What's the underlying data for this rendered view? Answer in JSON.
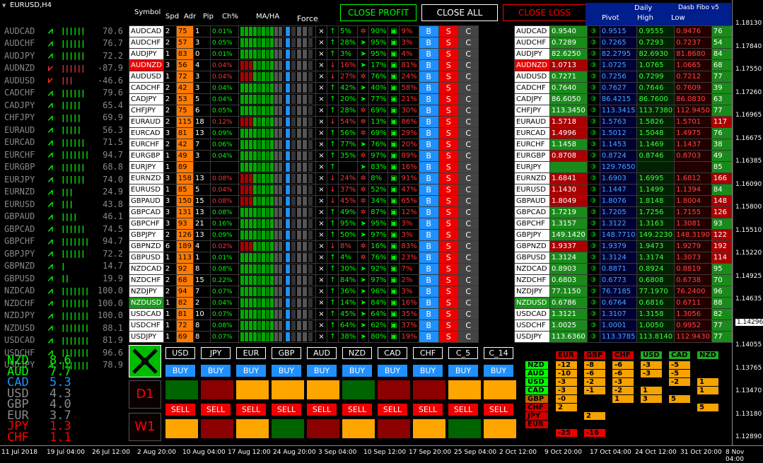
{
  "window": {
    "title": "EURUSD,H4"
  },
  "header": {
    "symbol": "Symbol",
    "spd": "Spd",
    "adr": "Adr",
    "pip": "Pip",
    "ch": "Ch%",
    "maha": "MA/HA",
    "force": "Force",
    "close_profit": "CLOSE PROFIT",
    "close_all": "CLOSE ALL",
    "close_loss": "CLOSE LOSS",
    "daily": "Daily",
    "dasb": "Dasb Fibo v5",
    "pivot": "Pivot",
    "high": "High",
    "low": "Low"
  },
  "strength": [
    [
      "AUDCAD",
      "up",
      6,
      "70.6"
    ],
    [
      "AUDCHF",
      "up",
      6,
      "76.7"
    ],
    [
      "AUDJPY",
      "up",
      6,
      "72.2"
    ],
    [
      "AUDNZD",
      "dn",
      6,
      "-87.9"
    ],
    [
      "AUDUSD",
      "dn",
      3,
      "-46.6"
    ],
    [
      "CADCHF",
      "up",
      6,
      "79.6"
    ],
    [
      "CADJPY",
      "up",
      5,
      "65.4"
    ],
    [
      "CHFJPY",
      "up",
      5,
      "69.9"
    ],
    [
      "EURAUD",
      "up",
      5,
      "56.3"
    ],
    [
      "EURCAD",
      "up",
      6,
      "71.5"
    ],
    [
      "EURCHF",
      "up",
      8,
      "94.7"
    ],
    [
      "EURGBP",
      "up",
      6,
      "68.8"
    ],
    [
      "EURJPY",
      "up",
      6,
      "74.0"
    ],
    [
      "EURNZD",
      "up",
      3,
      "24.9"
    ],
    [
      "EURUSD",
      "up",
      3,
      "43.8"
    ],
    [
      "GBPAUD",
      "up",
      4,
      "46.1"
    ],
    [
      "GBPCAD",
      "up",
      6,
      "74.5"
    ],
    [
      "GBPCHF",
      "up",
      8,
      "94.7"
    ],
    [
      "GBPJPY",
      "up",
      6,
      "72.2"
    ],
    [
      "GBPNZD",
      "up",
      1,
      "14.7"
    ],
    [
      "GBPUSD",
      "up",
      2,
      "19.9"
    ],
    [
      "NZDCAD",
      "up",
      8,
      "100.0"
    ],
    [
      "NZDCHF",
      "up",
      8,
      "100.0"
    ],
    [
      "NZDJPY",
      "up",
      8,
      "100.0"
    ],
    [
      "NZDUSD",
      "up",
      7,
      "88.1"
    ],
    [
      "USDCAD",
      "up",
      7,
      "81.9"
    ],
    [
      "USDCHF",
      "up",
      8,
      "96.6"
    ],
    [
      "USDJPY",
      "up",
      7,
      "78.9"
    ]
  ],
  "currencies": [
    [
      "NZD",
      "8.6",
      "#0f0"
    ],
    [
      "AUD",
      "7.7",
      "#0f0"
    ],
    [
      "CAD",
      "5.3",
      "#1e90ff"
    ],
    [
      "USD",
      "4.3",
      "#888"
    ],
    [
      "GBP",
      "4.0",
      "#888"
    ],
    [
      "EUR",
      "3.7",
      "#888"
    ],
    [
      "JPY",
      "1.3",
      "#f00"
    ],
    [
      "CHF",
      "1.1",
      "#f00"
    ]
  ],
  "rows": [
    [
      "AUDCAD",
      "2",
      "75",
      "1",
      "0.01%",
      "up",
      "5%",
      "dn",
      "90%",
      "9%",
      "0.9540",
      "0.9515",
      "0.9555",
      "0.9476",
      "76",
      "w"
    ],
    [
      "AUDCHF",
      "2",
      "57",
      "3",
      "0.05%",
      "up",
      "28%",
      "up",
      "95%",
      "3%",
      "0.7289",
      "0.7265",
      "0.7293",
      "0.7237",
      "54",
      "w"
    ],
    [
      "AUDJPY",
      "1",
      "83",
      "0",
      "0.01%",
      "up",
      "3%",
      "up",
      "95%",
      "4%",
      "82.6250",
      "82.2795",
      "82.6930",
      "81.8680",
      "84",
      "w"
    ],
    [
      "AUDNZD",
      "3",
      "56",
      "4",
      "0.04%",
      "dn",
      "16%",
      "up",
      "17%",
      "81%",
      "1.0713",
      "1.0725",
      "1.0765",
      "1.0665",
      "68",
      "r"
    ],
    [
      "AUDUSD",
      "1",
      "72",
      "3",
      "0.04%",
      "dn",
      "27%",
      "dn",
      "76%",
      "24%",
      "0.7271",
      "0.7256",
      "0.7299",
      "0.7212",
      "77",
      "w"
    ],
    [
      "CADCHF",
      "2",
      "42",
      "3",
      "0.04%",
      "up",
      "42%",
      "up",
      "40%",
      "58%",
      "0.7640",
      "0.7627",
      "0.7646",
      "0.7609",
      "39",
      "w"
    ],
    [
      "CADJPY",
      "2",
      "53",
      "5",
      "0.04%",
      "up",
      "20%",
      "up",
      "77%",
      "21%",
      "86.6050",
      "86.4215",
      "86.7600",
      "86.0830",
      "63",
      "w"
    ],
    [
      "CHFJPY",
      "2",
      "75",
      "6",
      "0.05%",
      "up",
      "28%",
      "dn",
      "69%",
      "30%",
      "113.3450",
      "113.3415",
      "113.7380",
      "112.9450",
      "77",
      "w"
    ],
    [
      "EURAUD",
      "2",
      "115",
      "18",
      "0.12%",
      "dn",
      "54%",
      "dn",
      "13%",
      "86%",
      "1.5718",
      "1.5763",
      "1.5826",
      "1.5701",
      "117",
      "w"
    ],
    [
      "EURCAD",
      "3",
      "81",
      "13",
      "0.09%",
      "up",
      "56%",
      "dn",
      "69%",
      "29%",
      "1.4996",
      "1.5012",
      "1.5048",
      "1.4975",
      "76",
      "w"
    ],
    [
      "EURCHF",
      "2",
      "42",
      "7",
      "0.06%",
      "up",
      "77%",
      "up",
      "76%",
      "20%",
      "1.1458",
      "1.1453",
      "1.1469",
      "1.1437",
      "38",
      "w"
    ],
    [
      "EURGBP",
      "1",
      "49",
      "3",
      "0.04%",
      "up",
      "35%",
      "dn",
      "97%",
      "89%",
      "0.8708",
      "0.8724",
      "0.8746",
      "0.8703",
      "49",
      "w"
    ],
    [
      "EURJPY",
      "1",
      "89",
      "",
      "",
      "up",
      "",
      "up",
      "83%",
      "16%",
      "",
      "129.7650",
      "",
      "",
      "85",
      "w"
    ],
    [
      "EURNZD",
      "3",
      "158",
      "13",
      "0.08%",
      "dn",
      "24%",
      "dn",
      "8%",
      "91%",
      "1.6841",
      "1.6903",
      "1.6995",
      "1.6812",
      "166",
      "w"
    ],
    [
      "EURUSD",
      "1",
      "85",
      "5",
      "0.04%",
      "dn",
      "37%",
      "dn",
      "52%",
      "47%",
      "1.1430",
      "1.1447",
      "1.1499",
      "1.1394",
      "84",
      "w"
    ],
    [
      "GBPAUD",
      "3",
      "150",
      "15",
      "0.08%",
      "dn",
      "45%",
      "dn",
      "34%",
      "65%",
      "1.8049",
      "1.8076",
      "1.8148",
      "1.8004",
      "148",
      "w"
    ],
    [
      "GBPCAD",
      "3",
      "131",
      "13",
      "0.08%",
      "up",
      "49%",
      "dn",
      "87%",
      "12%",
      "1.7219",
      "1.7205",
      "1.7256",
      "1.7155",
      "126",
      "w"
    ],
    [
      "GBPCHF",
      "3",
      "93",
      "21",
      "0.16%",
      "up",
      "95%",
      "up",
      "95%",
      "3%",
      "1.3157",
      "1.3122",
      "1.3163",
      "1.3081",
      "93",
      "w"
    ],
    [
      "GBPJPY",
      "2",
      "126",
      "13",
      "0.09%",
      "up",
      "50%",
      "up",
      "97%",
      "3%",
      "149.1420",
      "148.7710",
      "149.2230",
      "148.3190",
      "122",
      "w"
    ],
    [
      "GBPNZD",
      "6",
      "189",
      "4",
      "0.02%",
      "dn",
      "8%",
      "dn",
      "16%",
      "83%",
      "1.9337",
      "1.9379",
      "1.9473",
      "1.9279",
      "192",
      "w"
    ],
    [
      "GBPUSD",
      "1",
      "113",
      "1",
      "0.01%",
      "up",
      "4%",
      "dn",
      "76%",
      "23%",
      "1.3124",
      "1.3124",
      "1.3174",
      "1.3073",
      "114",
      "w"
    ],
    [
      "NZDCAD",
      "2",
      "92",
      "8",
      "0.08%",
      "up",
      "30%",
      "up",
      "92%",
      "7%",
      "0.8903",
      "0.8871",
      "0.8924",
      "0.8819",
      "95",
      "w"
    ],
    [
      "NZDCHF",
      "2",
      "68",
      "15",
      "0.22%",
      "up",
      "84%",
      "up",
      "97%",
      "2%",
      "0.6803",
      "0.6773",
      "0.6808",
      "0.6738",
      "70",
      "w"
    ],
    [
      "NZDJPY",
      "2",
      "94",
      "7",
      "0.07%",
      "up",
      "36%",
      "up",
      "96%",
      "3%",
      "77.1150",
      "76.7185",
      "77.1970",
      "76.2400",
      "96",
      "w"
    ],
    [
      "NZDUSD",
      "1",
      "82",
      "2",
      "0.04%",
      "up",
      "14%",
      "up",
      "84%",
      "16%",
      "0.6786",
      "0.6764",
      "0.6816",
      "0.6711",
      "88",
      "g"
    ],
    [
      "USDCAD",
      "1",
      "81",
      "10",
      "0.07%",
      "up",
      "45%",
      "up",
      "64%",
      "35%",
      "1.3121",
      "1.3107",
      "1.3158",
      "1.3056",
      "82",
      "w"
    ],
    [
      "USDCHF",
      "1",
      "72",
      "8",
      "0.08%",
      "up",
      "64%",
      "up",
      "62%",
      "37%",
      "1.0025",
      "1.0001",
      "1.0050",
      "0.9952",
      "77",
      "w"
    ],
    [
      "USDJPY",
      "1",
      "69",
      "8",
      "0.07%",
      "up",
      "38%",
      "up",
      "80%",
      "19%",
      "113.6360",
      "113.3785",
      "113.8140",
      "112.9430",
      "77",
      "w"
    ]
  ],
  "buttons": {
    "b": "B",
    "s": "S",
    "c": "C"
  },
  "bottom": {
    "currencies": [
      "USD",
      "JPY",
      "EUR",
      "GBP",
      "AUD",
      "NZD",
      "CAD",
      "CHF",
      "C_5",
      "C_14"
    ],
    "buy": "BUY",
    "sell": "SELL",
    "d1": "D1",
    "w1": "W1",
    "d1_colors": [
      "#006400",
      "#8b0000",
      "#ffa500",
      "#ffa500",
      "#ffa500",
      "#006400",
      "#8b0000",
      "#8b0000",
      "#ffa500",
      "#ffa500"
    ],
    "w1_colors": [
      "#ffa500",
      "#8b0000",
      "#ffa500",
      "#006400",
      "#8b0000",
      "#ffa500",
      "#8b0000",
      "#ffa500",
      "#006400",
      "#ffa500"
    ]
  },
  "matrix": {
    "cols": [
      "EUR",
      "GBP",
      "CHF",
      "USD",
      "CAD",
      "NZD"
    ],
    "colcolors": [
      "#c00",
      "#c00",
      "#c00",
      "#2a2",
      "#2a2",
      "#2a2"
    ],
    "rows": [
      "NZD",
      "AUD",
      "USD",
      "CAD",
      "GBP",
      "CHF",
      "JPY",
      "EUR"
    ],
    "rowcolors": [
      "#0f0",
      "#0f0",
      "#0f0",
      "#0f0",
      "#c60",
      "#c00",
      "#c00",
      "#c00"
    ],
    "values": [
      [
        "-12",
        "-8",
        "-6",
        "-3",
        "-5",
        ""
      ],
      [
        "-10",
        "-6",
        "-6",
        "-3",
        "-5",
        ""
      ],
      [
        "-3",
        "-2",
        "-3",
        "",
        "-2",
        "1"
      ],
      [
        "-3",
        "-1",
        "-2",
        "1",
        "",
        "1"
      ],
      [
        "-0",
        "",
        "1",
        "3",
        "5",
        ""
      ],
      [
        "2",
        "",
        "",
        "",
        "",
        "5"
      ],
      [
        "",
        "2",
        "",
        "",
        "",
        ""
      ],
      [
        "",
        "",
        "",
        "",
        "",
        ""
      ]
    ],
    "totals": [
      "-25",
      "-16"
    ]
  },
  "axis": [
    "1.18130",
    "1.17840",
    "1.17550",
    "1.17260",
    "1.16965",
    "1.16675",
    "1.16385",
    "1.16090",
    "1.15800",
    "1.15510",
    "1.15220",
    "1.14925",
    "1.14635",
    "1.14296",
    "1.14055",
    "1.13765",
    "1.13470",
    "1.13180",
    "1.12890"
  ],
  "time": [
    "11 Jul 2018",
    "19 Jul 04:00",
    "26 Jul 12:00",
    "2 Aug 20:00",
    "10 Aug 04:00",
    "17 Aug 12:00",
    "24 Aug 20:00",
    "3 Sep 04:00",
    "10 Sep 12:00",
    "17 Sep 20:00",
    "25 Sep 04:00",
    "2 Oct 12:00",
    "9 Oct 20:00",
    "17 Oct 04:00",
    "24 Oct 12:00",
    "31 Oct 20:00",
    "8 Nov 04:00"
  ]
}
